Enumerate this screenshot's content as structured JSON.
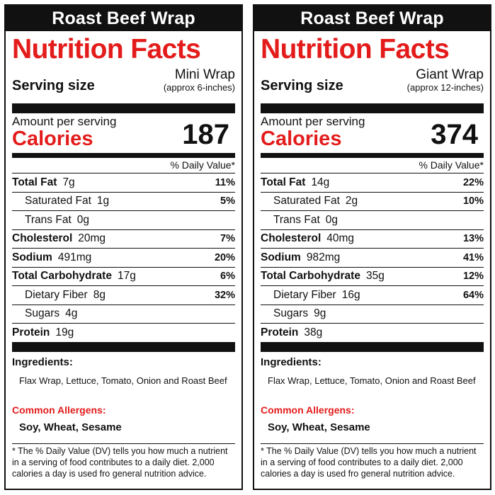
{
  "panels": [
    {
      "product_name": "Roast Beef Wrap",
      "heading": "Nutrition Facts",
      "serving_label": "Serving size",
      "serving_size": "Mini Wrap",
      "serving_note": "(approx 6-inches)",
      "amount_label": "Amount per serving",
      "calories_label": "Calories",
      "calories": "187",
      "dv_header": "% Daily Value*",
      "nutrients": [
        {
          "name": "Total Fat",
          "amount": "7g",
          "dv": "11%"
        },
        {
          "name": "Saturated Fat",
          "amount": "1g",
          "dv": "5%"
        },
        {
          "name": "Trans Fat",
          "amount": "0g",
          "dv": ""
        },
        {
          "name": "Cholesterol",
          "amount": "20mg",
          "dv": "7%"
        },
        {
          "name": "Sodium",
          "amount": "491mg",
          "dv": "20%"
        },
        {
          "name": "Total Carbohydrate",
          "amount": "17g",
          "dv": "6%"
        },
        {
          "name": "Dietary Fiber",
          "amount": "8g",
          "dv": "32%"
        },
        {
          "name": "Sugars",
          "amount": "4g",
          "dv": ""
        },
        {
          "name": "Protein",
          "amount": "19g",
          "dv": ""
        }
      ],
      "ingredients_label": "Ingredients:",
      "ingredients": "Flax Wrap,  Lettuce, Tomato, Onion and Roast Beef",
      "allergens_label": "Common Allergens:",
      "allergens": "Soy, Wheat, Sesame",
      "footnote": "* The % Daily Value (DV) tells you how much a nutrient in a serving of food contributes to a daily diet.  2,000 calories a day is used fro general nutrition advice."
    },
    {
      "product_name": "Roast Beef Wrap",
      "heading": "Nutrition Facts",
      "serving_label": "Serving size",
      "serving_size": "Giant Wrap",
      "serving_note": "(approx 12-inches)",
      "amount_label": "Amount per serving",
      "calories_label": "Calories",
      "calories": "374",
      "dv_header": "% Daily Value*",
      "nutrients": [
        {
          "name": "Total Fat",
          "amount": "14g",
          "dv": "22%"
        },
        {
          "name": "Saturated Fat",
          "amount": "2g",
          "dv": "10%"
        },
        {
          "name": "Trans Fat",
          "amount": "0g",
          "dv": ""
        },
        {
          "name": "Cholesterol",
          "amount": "40mg",
          "dv": "13%"
        },
        {
          "name": "Sodium",
          "amount": "982mg",
          "dv": "41%"
        },
        {
          "name": "Total Carbohydrate",
          "amount": "35g",
          "dv": "12%"
        },
        {
          "name": "Dietary Fiber",
          "amount": "16g",
          "dv": "64%"
        },
        {
          "name": "Sugars",
          "amount": "9g",
          "dv": ""
        },
        {
          "name": "Protein",
          "amount": "38g",
          "dv": ""
        }
      ],
      "ingredients_label": "Ingredients:",
      "ingredients": "Flax Wrap,  Lettuce, Tomato, Onion and Roast Beef",
      "allergens_label": "Common Allergens:",
      "allergens": "Soy, Wheat, Sesame",
      "footnote": "* The % Daily Value (DV) tells you how much a nutrient in a serving of food contributes to a daily diet.  2,000 calories a day is used fro general nutrition advice."
    }
  ],
  "colors": {
    "accent": "#e41b1b",
    "ink": "#111111"
  }
}
